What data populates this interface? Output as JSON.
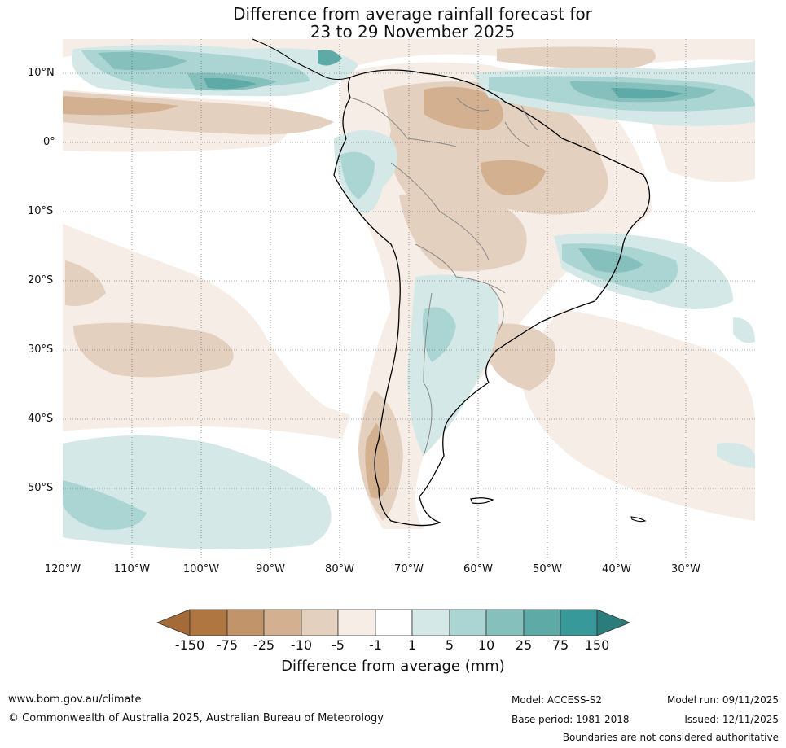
{
  "title": {
    "line1": "Difference from average rainfall forecast for",
    "line2": "23 to 29 November 2025"
  },
  "lat_labels": [
    "10°N",
    "0°",
    "10°S",
    "20°S",
    "30°S",
    "40°S",
    "50°S"
  ],
  "lon_labels": [
    "120°W",
    "110°W",
    "100°W",
    "90°W",
    "80°W",
    "70°W",
    "60°W",
    "50°W",
    "40°W",
    "30°W"
  ],
  "colorbar": {
    "title": "Difference from average (mm)",
    "labels": [
      "-150",
      "-75",
      "-25",
      "-10",
      "-5",
      "-1",
      "1",
      "5",
      "10",
      "25",
      "75",
      "150"
    ],
    "colors": [
      "#a46b38",
      "#b07642",
      "#c2946a",
      "#d3b090",
      "#e4d0be",
      "#f5ede6",
      "#ffffff",
      "#d4e9e7",
      "#aad5d3",
      "#85c0bd",
      "#5eaaa7",
      "#38999a",
      "#2a7d7a"
    ]
  },
  "footer": {
    "website": "www.bom.gov.au/climate",
    "copyright": "© Commonwealth of Australia 2025, Australian Bureau of Meteorology",
    "model": "Model: ACCESS-S2",
    "base_period": "Base period: 1981-2018",
    "model_run": "Model run: 09/11/2025",
    "issued": "Issued: 12/11/2025",
    "disclaimer": "Boundaries are not considered authoritative"
  }
}
